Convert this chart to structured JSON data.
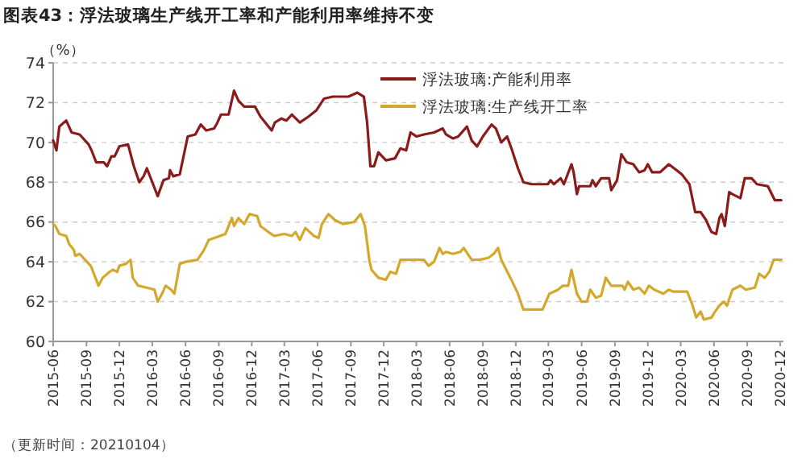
{
  "chart_data": {
    "type": "line",
    "title": "图表43：浮法玻璃生产线开工率和产能利用率维持不变",
    "ylabel": "（%）",
    "annotations": [
      "（更新时间：20210104）"
    ],
    "xlim": [
      "2015-06-01",
      "2020-12-10"
    ],
    "ylim": [
      60,
      74
    ],
    "yticks": [
      60,
      62,
      64,
      66,
      68,
      70,
      72,
      74
    ],
    "xticks": [
      "2015-06",
      "2015-09",
      "2015-12",
      "2016-03",
      "2016-06",
      "2016-09",
      "2016-12",
      "2017-03",
      "2017-06",
      "2017-09",
      "2017-12",
      "2018-03",
      "2018-06",
      "2018-09",
      "2018-12",
      "2019-03",
      "2019-06",
      "2019-09",
      "2019-12",
      "2020-03",
      "2020-06",
      "2020-09",
      "2020-12"
    ],
    "grid": "y",
    "legend": "top right",
    "series": [
      {
        "name": "浮法玻璃:产能利用率",
        "color": "#8b1a1a",
        "x": [
          "2015-06-01",
          "2015-06-10",
          "2015-06-18",
          "2015-07-07",
          "2015-07-22",
          "2015-08-13",
          "2015-09-07",
          "2015-09-15",
          "2015-09-28",
          "2015-10-19",
          "2015-10-28",
          "2015-11-09",
          "2015-11-18",
          "2015-12-01",
          "2015-12-25",
          "2016-01-10",
          "2016-01-25",
          "2016-02-06",
          "2016-02-15",
          "2016-03-01",
          "2016-03-16",
          "2016-04-01",
          "2016-04-16",
          "2016-04-19",
          "2016-04-28",
          "2016-05-16",
          "2016-06-07",
          "2016-06-28",
          "2016-07-13",
          "2016-07-28",
          "2016-08-19",
          "2016-08-28",
          "2016-09-07",
          "2016-09-28",
          "2016-10-13",
          "2016-10-25",
          "2016-11-10",
          "2016-12-10",
          "2016-12-25",
          "2017-01-16",
          "2017-01-25",
          "2017-02-03",
          "2017-02-21",
          "2017-03-07",
          "2017-03-22",
          "2017-04-13",
          "2017-05-07",
          "2017-05-28",
          "2017-06-19",
          "2017-07-13",
          "2017-08-25",
          "2017-09-19",
          "2017-10-07",
          "2017-10-16",
          "2017-10-25",
          "2017-11-04",
          "2017-11-16",
          "2017-12-07",
          "2018-01-01",
          "2018-01-16",
          "2018-02-01",
          "2018-02-13",
          "2018-03-01",
          "2018-03-22",
          "2018-04-19",
          "2018-05-13",
          "2018-05-22",
          "2018-06-10",
          "2018-06-25",
          "2018-07-19",
          "2018-08-01",
          "2018-08-16",
          "2018-09-01",
          "2018-09-25",
          "2018-10-07",
          "2018-10-22",
          "2018-11-07",
          "2018-11-19",
          "2018-12-07",
          "2018-12-22",
          "2019-01-13",
          "2019-02-28",
          "2019-03-07",
          "2019-03-16",
          "2019-04-04",
          "2019-04-13",
          "2019-05-04",
          "2019-05-10",
          "2019-05-19",
          "2019-05-25",
          "2019-06-25",
          "2019-07-01",
          "2019-07-10",
          "2019-07-25",
          "2019-08-16",
          "2019-08-22",
          "2019-09-07",
          "2019-09-19",
          "2019-10-04",
          "2019-10-22",
          "2019-11-07",
          "2019-11-22",
          "2019-12-01",
          "2019-12-13",
          "2020-01-04",
          "2020-01-28",
          "2020-02-19",
          "2020-03-04",
          "2020-03-25",
          "2020-04-10",
          "2020-04-25",
          "2020-05-10",
          "2020-05-25",
          "2020-06-07",
          "2020-06-16",
          "2020-06-22",
          "2020-07-01",
          "2020-07-13",
          "2020-07-22",
          "2020-08-13",
          "2020-08-25",
          "2020-09-13",
          "2020-09-28",
          "2020-10-28",
          "2020-11-16",
          "2020-12-04"
        ],
        "values": [
          70.1,
          69.6,
          70.8,
          71.1,
          70.5,
          70.4,
          69.9,
          69.6,
          69.0,
          69.0,
          68.8,
          69.3,
          69.3,
          69.8,
          69.9,
          68.8,
          68.0,
          68.3,
          68.7,
          68.0,
          67.3,
          68.1,
          68.2,
          68.6,
          68.3,
          68.4,
          70.3,
          70.4,
          70.9,
          70.6,
          70.7,
          71.0,
          71.4,
          71.4,
          72.6,
          72.1,
          71.8,
          71.8,
          71.3,
          70.8,
          70.6,
          71.0,
          71.2,
          71.1,
          71.4,
          71.0,
          71.3,
          71.6,
          72.2,
          72.3,
          72.3,
          72.5,
          72.3,
          71.0,
          68.8,
          68.8,
          69.5,
          69.1,
          69.2,
          69.7,
          69.6,
          70.5,
          70.3,
          70.4,
          70.5,
          70.7,
          70.4,
          70.2,
          70.3,
          70.8,
          70.1,
          69.8,
          70.3,
          70.9,
          70.7,
          70.0,
          70.3,
          69.7,
          68.7,
          68.0,
          67.9,
          67.9,
          68.1,
          67.9,
          68.2,
          67.9,
          68.9,
          68.5,
          67.4,
          67.8,
          67.8,
          68.1,
          67.8,
          68.2,
          68.2,
          67.6,
          68.1,
          69.4,
          69.0,
          68.9,
          68.5,
          68.6,
          68.9,
          68.5,
          68.5,
          68.9,
          68.6,
          68.4,
          67.9,
          66.5,
          66.5,
          66.1,
          65.5,
          65.4,
          66.2,
          66.4,
          65.8,
          67.5,
          67.4,
          67.2,
          68.2,
          68.2,
          67.9,
          67.8,
          67.1,
          67.1
        ]
      },
      {
        "name": "浮法玻璃:生产线开工率",
        "color": "#d4a82a",
        "x": [
          "2015-06-01",
          "2015-06-07",
          "2015-06-18",
          "2015-07-07",
          "2015-07-15",
          "2015-07-28",
          "2015-08-01",
          "2015-08-13",
          "2015-08-28",
          "2015-09-13",
          "2015-09-28",
          "2015-10-04",
          "2015-10-16",
          "2015-11-04",
          "2015-11-13",
          "2015-11-25",
          "2015-12-01",
          "2015-12-19",
          "2016-01-01",
          "2016-01-07",
          "2016-01-22",
          "2016-02-15",
          "2016-03-07",
          "2016-03-16",
          "2016-03-28",
          "2016-04-07",
          "2016-04-22",
          "2016-05-01",
          "2016-05-16",
          "2016-06-01",
          "2016-07-04",
          "2016-07-22",
          "2016-08-04",
          "2016-09-04",
          "2016-09-19",
          "2016-10-07",
          "2016-10-13",
          "2016-10-25",
          "2016-11-10",
          "2016-11-25",
          "2016-12-16",
          "2016-12-25",
          "2017-01-16",
          "2017-02-01",
          "2017-03-01",
          "2017-03-22",
          "2017-04-01",
          "2017-04-13",
          "2017-04-28",
          "2017-05-22",
          "2017-06-04",
          "2017-06-13",
          "2017-07-01",
          "2017-07-19",
          "2017-08-10",
          "2017-09-10",
          "2017-09-28",
          "2017-10-10",
          "2017-10-22",
          "2017-10-28",
          "2017-11-16",
          "2017-12-07",
          "2017-12-19",
          "2018-01-04",
          "2018-01-16",
          "2018-01-22",
          "2018-03-22",
          "2018-04-04",
          "2018-04-19",
          "2018-05-04",
          "2018-05-13",
          "2018-05-22",
          "2018-06-10",
          "2018-07-01",
          "2018-07-10",
          "2018-08-01",
          "2018-08-22",
          "2018-09-16",
          "2018-10-01",
          "2018-10-13",
          "2018-10-22",
          "2018-11-16",
          "2018-12-07",
          "2018-12-22",
          "2019-02-13",
          "2019-03-04",
          "2019-03-28",
          "2019-04-10",
          "2019-04-25",
          "2019-05-04",
          "2019-05-19",
          "2019-06-01",
          "2019-06-16",
          "2019-06-25",
          "2019-07-10",
          "2019-07-25",
          "2019-08-07",
          "2019-08-22",
          "2019-09-22",
          "2019-09-28",
          "2019-10-07",
          "2019-10-22",
          "2019-11-07",
          "2019-11-22",
          "2019-12-04",
          "2019-12-19",
          "2020-01-13",
          "2020-01-28",
          "2020-02-10",
          "2020-03-19",
          "2020-04-01",
          "2020-04-13",
          "2020-04-25",
          "2020-05-04",
          "2020-05-25",
          "2020-06-04",
          "2020-06-16",
          "2020-06-28",
          "2020-07-07",
          "2020-07-22",
          "2020-08-13",
          "2020-08-28",
          "2020-09-22",
          "2020-10-04",
          "2020-10-19",
          "2020-11-01",
          "2020-11-13",
          "2020-12-04"
        ],
        "values": [
          65.9,
          65.8,
          65.4,
          65.3,
          64.9,
          64.6,
          64.3,
          64.4,
          64.1,
          63.8,
          63.1,
          62.8,
          63.2,
          63.5,
          63.6,
          63.5,
          63.8,
          63.9,
          64.1,
          63.2,
          62.8,
          62.7,
          62.6,
          62.0,
          62.4,
          62.8,
          62.6,
          62.4,
          63.9,
          64.0,
          64.1,
          64.6,
          65.1,
          65.3,
          65.4,
          66.2,
          65.8,
          66.2,
          65.9,
          66.4,
          66.3,
          65.8,
          65.5,
          65.3,
          65.4,
          65.3,
          65.5,
          65.1,
          65.7,
          65.3,
          65.2,
          65.9,
          66.4,
          66.1,
          65.9,
          66.0,
          66.4,
          65.8,
          64.1,
          63.6,
          63.2,
          63.1,
          63.5,
          63.4,
          64.1,
          64.1,
          64.1,
          63.8,
          64.0,
          64.7,
          64.4,
          64.5,
          64.4,
          64.5,
          64.7,
          64.1,
          64.1,
          64.2,
          64.4,
          64.7,
          64.1,
          63.2,
          62.4,
          61.6,
          61.6,
          62.4,
          62.6,
          62.8,
          62.8,
          63.6,
          62.4,
          62.0,
          62.0,
          62.6,
          62.2,
          62.3,
          63.2,
          62.8,
          62.8,
          62.6,
          63.0,
          62.6,
          62.7,
          62.4,
          62.8,
          62.6,
          62.4,
          62.6,
          62.5,
          62.5,
          61.9,
          61.2,
          61.5,
          61.1,
          61.2,
          61.5,
          61.8,
          62.0,
          61.8,
          62.6,
          62.8,
          62.6,
          62.7,
          63.4,
          63.2,
          63.5,
          64.1,
          64.1
        ]
      }
    ]
  }
}
